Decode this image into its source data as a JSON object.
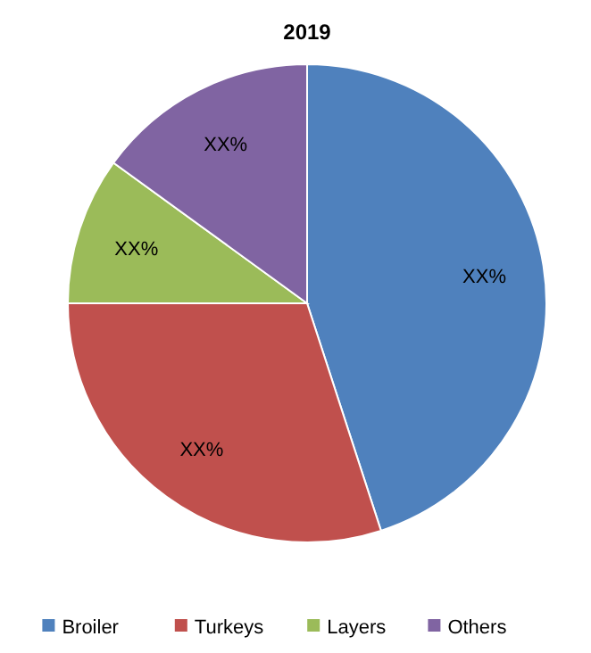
{
  "chart_data": {
    "type": "pie",
    "title": "2019",
    "categories": [
      "Broiler",
      "Turkeys",
      "Layers",
      "Others"
    ],
    "values": [
      45,
      30,
      10,
      15
    ],
    "value_labels": [
      "XX%",
      "XX%",
      "XX%",
      "XX%"
    ],
    "colors": [
      "#4f81bd",
      "#c0504d",
      "#9bbb59",
      "#8064a2"
    ],
    "legend": "bottom"
  }
}
